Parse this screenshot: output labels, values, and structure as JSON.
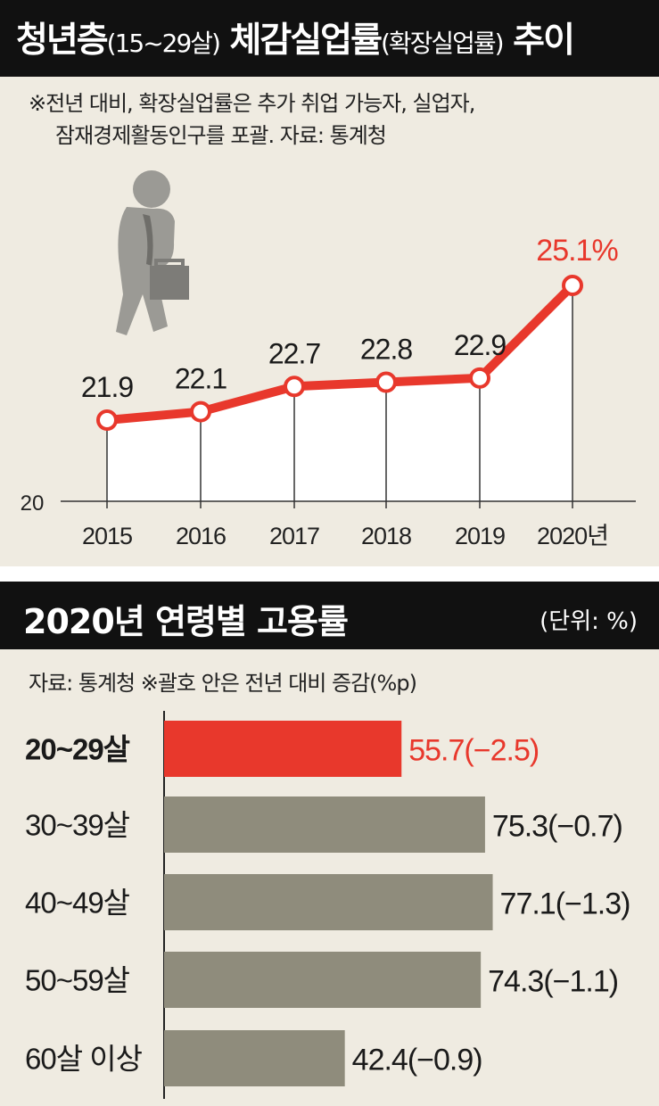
{
  "header1": {
    "title_main": "청년층",
    "title_paren1": "(15~29살)",
    "title_mid": " 체감실업률",
    "title_paren2": "(확장실업률)",
    "title_end": " 추이"
  },
  "note1": {
    "line1": "※전년 대비, 확장실업률은 추가 취업 가능자, 실업자,",
    "line2": "잠재경제활동인구를 포괄.  자료: 통계청"
  },
  "header2": {
    "title": "2020년 연령별 고용률",
    "unit": "(단위: %)"
  },
  "note2": {
    "text": "자료: 통계청  ※괄호 안은 전년 대비 증감(%p)"
  },
  "colors": {
    "accent": "#e8382c",
    "bar_gray": "#8f8c7c",
    "background": "#efebe1",
    "header_bg": "#111111"
  },
  "icon": "unemployed-person-with-briefcase-icon",
  "chart_data": [
    {
      "type": "line",
      "x": [
        "2015",
        "2016",
        "2017",
        "2018",
        "2019",
        "2020년"
      ],
      "values": [
        21.9,
        22.1,
        22.7,
        22.8,
        22.9,
        25.1
      ],
      "labels": [
        "21.9",
        "22.1",
        "22.7",
        "22.8",
        "22.9",
        "25.1%"
      ],
      "highlight_index": 5,
      "y_axis_label": "20",
      "ylim": [
        20,
        25.1
      ],
      "area_fill": true,
      "grid": false
    },
    {
      "type": "bar",
      "orientation": "horizontal",
      "categories": [
        "20~29살",
        "30~39살",
        "40~49살",
        "50~59살",
        "60살 이상"
      ],
      "values": [
        55.7,
        75.3,
        77.1,
        74.3,
        42.4
      ],
      "changes": [
        -2.5,
        -0.7,
        -1.3,
        -1.1,
        -0.9
      ],
      "labels": [
        "55.7(−2.5)",
        "75.3(−0.7)",
        "77.1(−1.3)",
        "74.3(−1.1)",
        "42.4(−0.9)"
      ],
      "highlight_index": 0,
      "xlim": [
        0,
        80
      ]
    }
  ]
}
